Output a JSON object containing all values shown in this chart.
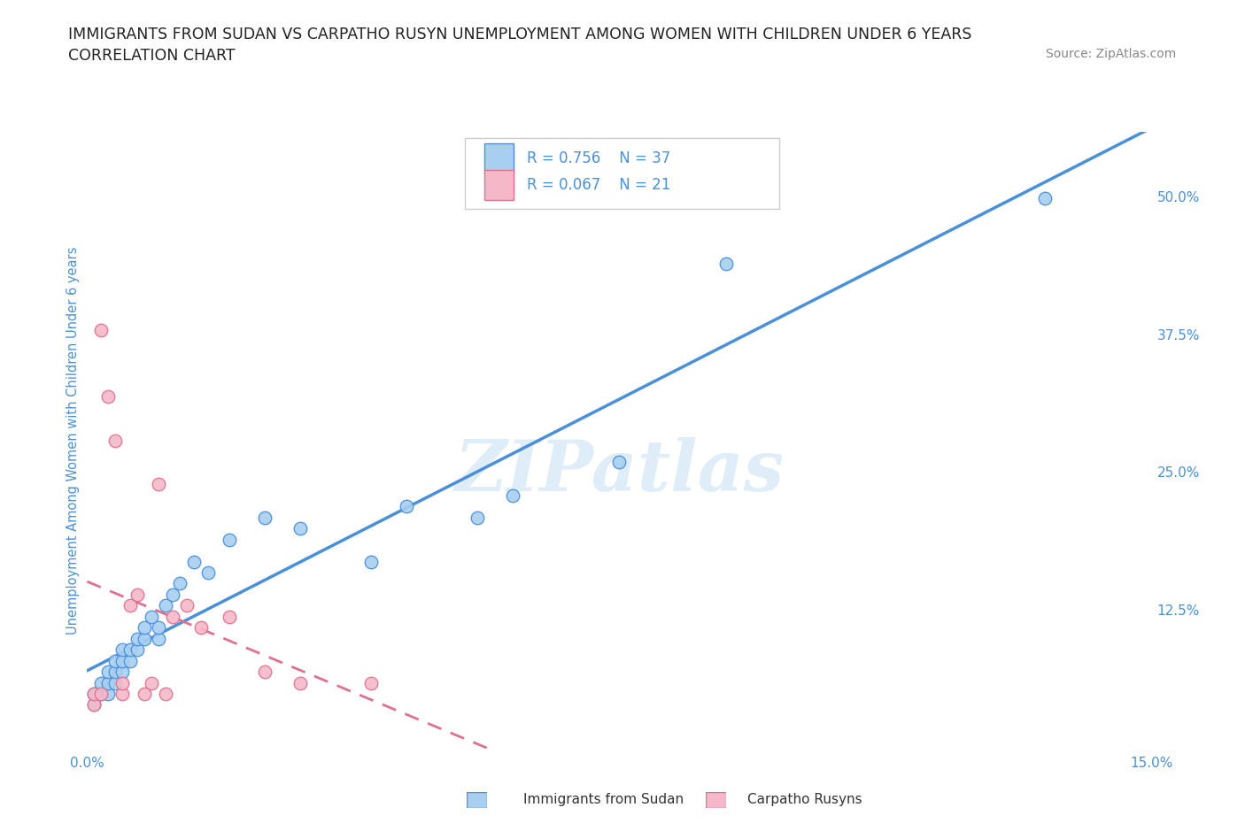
{
  "title_line1": "IMMIGRANTS FROM SUDAN VS CARPATHO RUSYN UNEMPLOYMENT AMONG WOMEN WITH CHILDREN UNDER 6 YEARS",
  "title_line2": "CORRELATION CHART",
  "source_text": "Source: ZipAtlas.com",
  "ylabel": "Unemployment Among Women with Children Under 6 years",
  "xlim": [
    0.0,
    0.15
  ],
  "ylim": [
    0.0,
    0.56
  ],
  "right_yticks": [
    0.125,
    0.25,
    0.375,
    0.5
  ],
  "right_yticklabels": [
    "12.5%",
    "25.0%",
    "37.5%",
    "50.0%"
  ],
  "watermark": "ZIPatlas",
  "color_blue": "#a8cff0",
  "color_pink": "#f5b8c8",
  "color_blue_line": "#4a90d9",
  "color_pink_line": "#e07090",
  "color_title": "#222222",
  "color_axis_label": "#4a90d9",
  "color_tick_label": "#4a90d9",
  "grid_color": "#f0d8e0",
  "sudan_x": [
    0.001,
    0.001,
    0.002,
    0.002,
    0.003,
    0.003,
    0.003,
    0.004,
    0.004,
    0.004,
    0.005,
    0.005,
    0.005,
    0.006,
    0.006,
    0.007,
    0.007,
    0.008,
    0.008,
    0.009,
    0.01,
    0.01,
    0.011,
    0.012,
    0.013,
    0.015,
    0.017,
    0.02,
    0.025,
    0.03,
    0.04,
    0.045,
    0.055,
    0.06,
    0.075,
    0.09,
    0.135
  ],
  "sudan_y": [
    0.04,
    0.05,
    0.05,
    0.06,
    0.05,
    0.06,
    0.07,
    0.06,
    0.07,
    0.08,
    0.07,
    0.08,
    0.09,
    0.08,
    0.09,
    0.09,
    0.1,
    0.1,
    0.11,
    0.12,
    0.1,
    0.11,
    0.13,
    0.14,
    0.15,
    0.17,
    0.16,
    0.19,
    0.21,
    0.2,
    0.17,
    0.22,
    0.21,
    0.23,
    0.26,
    0.44,
    0.5
  ],
  "rusyn_x": [
    0.001,
    0.001,
    0.002,
    0.002,
    0.003,
    0.004,
    0.005,
    0.005,
    0.006,
    0.007,
    0.008,
    0.009,
    0.01,
    0.011,
    0.012,
    0.014,
    0.016,
    0.02,
    0.025,
    0.03,
    0.04
  ],
  "rusyn_y": [
    0.04,
    0.05,
    0.38,
    0.05,
    0.32,
    0.28,
    0.05,
    0.06,
    0.13,
    0.14,
    0.05,
    0.06,
    0.24,
    0.05,
    0.12,
    0.13,
    0.11,
    0.12,
    0.07,
    0.06,
    0.06
  ],
  "legend_label_sudan": "Immigrants from Sudan",
  "legend_label_rusyn": "Carpatho Rusyns",
  "legend_r1": "R = 0.756",
  "legend_n1": "N = 37",
  "legend_r2": "R = 0.067",
  "legend_n2": "N = 21"
}
